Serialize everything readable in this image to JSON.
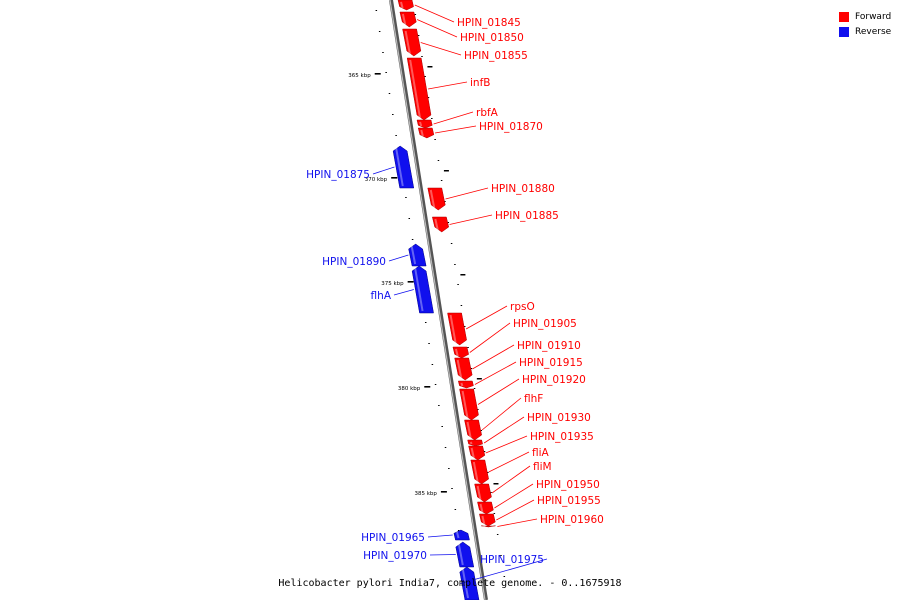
{
  "legend": {
    "forward_label": "Forward",
    "reverse_label": "Reverse",
    "forward_color": "#ff0000",
    "reverse_color": "#1010ee"
  },
  "caption": "Helicobacter pylori India7, complete genome. - 0..1675918",
  "colors": {
    "backbone": "#888888",
    "tick": "#000000"
  },
  "ticks": [
    {
      "kbp": 365,
      "label": "365 kbp"
    },
    {
      "kbp": 370,
      "label": "370 kbp"
    },
    {
      "kbp": 375,
      "label": "375 kbp"
    },
    {
      "kbp": 380,
      "label": "380 kbp"
    },
    {
      "kbp": 385,
      "label": "385 kbp"
    }
  ],
  "genes": [
    {
      "name": "HPIN_01845",
      "strand": "forward"
    },
    {
      "name": "HPIN_01850",
      "strand": "forward"
    },
    {
      "name": "HPIN_01855",
      "strand": "forward"
    },
    {
      "name": "infB",
      "strand": "forward"
    },
    {
      "name": "rbfA",
      "strand": "forward"
    },
    {
      "name": "HPIN_01870",
      "strand": "forward"
    },
    {
      "name": "HPIN_01875",
      "strand": "reverse"
    },
    {
      "name": "HPIN_01880",
      "strand": "forward"
    },
    {
      "name": "HPIN_01885",
      "strand": "forward"
    },
    {
      "name": "HPIN_01890",
      "strand": "reverse"
    },
    {
      "name": "flhA",
      "strand": "reverse"
    },
    {
      "name": "rpsO",
      "strand": "forward"
    },
    {
      "name": "HPIN_01905",
      "strand": "forward"
    },
    {
      "name": "HPIN_01910",
      "strand": "forward"
    },
    {
      "name": "HPIN_01915",
      "strand": "forward"
    },
    {
      "name": "HPIN_01920",
      "strand": "forward"
    },
    {
      "name": "flhF",
      "strand": "forward"
    },
    {
      "name": "HPIN_01930",
      "strand": "forward"
    },
    {
      "name": "HPIN_01935",
      "strand": "forward"
    },
    {
      "name": "fliA",
      "strand": "forward"
    },
    {
      "name": "fliM",
      "strand": "forward"
    },
    {
      "name": "HPIN_01950",
      "strand": "forward"
    },
    {
      "name": "HPIN_01955",
      "strand": "forward"
    },
    {
      "name": "HPIN_01960",
      "strand": "forward"
    },
    {
      "name": "HPIN_01965",
      "strand": "reverse"
    },
    {
      "name": "HPIN_01970",
      "strand": "reverse"
    },
    {
      "name": "HPIN_01975",
      "strand": "reverse"
    }
  ]
}
